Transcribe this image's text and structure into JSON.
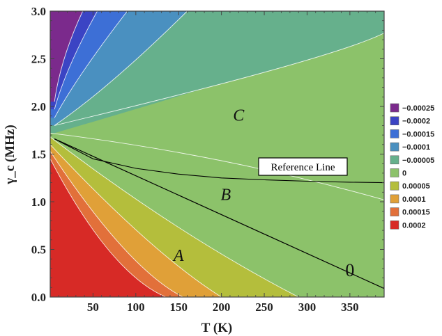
{
  "chart_data": {
    "type": "contour",
    "xlabel": "T (K)",
    "ylabel": "γ_c (MHz)",
    "xlim": [
      0,
      390
    ],
    "ylim": [
      0.0,
      3.0
    ],
    "x_ticks": [
      "50",
      "100",
      "150",
      "200",
      "250",
      "300",
      "350"
    ],
    "y_ticks": [
      "0.0",
      "0.5",
      "1.0",
      "1.5",
      "2.0",
      "2.5",
      "3.0"
    ],
    "legend": {
      "placement": "right",
      "entries": [
        {
          "label": "−0.00025",
          "color": "#7b2a8c"
        },
        {
          "label": "−0.0002",
          "color": "#3b44c4"
        },
        {
          "label": "−0.00015",
          "color": "#3d6fd6"
        },
        {
          "label": "−0.0001",
          "color": "#4a90c0"
        },
        {
          "label": "−0.00005",
          "color": "#66b08c"
        },
        {
          "label": "0",
          "color": "#8cc26a"
        },
        {
          "label": "0.00005",
          "color": "#b4be3c"
        },
        {
          "label": "0.0001",
          "color": "#e0a038"
        },
        {
          "label": "0.00015",
          "color": "#e2703a"
        },
        {
          "label": "0.0002",
          "color": "#d72a26"
        }
      ]
    },
    "region_labels": [
      {
        "text": "A",
        "x": 150,
        "y": 0.38
      },
      {
        "text": "B",
        "x": 205,
        "y": 1.02
      },
      {
        "text": "C",
        "x": 220,
        "y": 1.85
      }
    ],
    "zero_contour_label": {
      "text": "0",
      "x": 350,
      "y": 0.22
    },
    "zero_contour": {
      "x": [
        5,
        390
      ],
      "y": [
        1.66,
        0.09
      ]
    },
    "reference_line": {
      "label": "Reference Line",
      "x": [
        5,
        50,
        100,
        150,
        200,
        250,
        300,
        350,
        390
      ],
      "y": [
        1.66,
        1.45,
        1.35,
        1.29,
        1.25,
        1.23,
        1.215,
        1.205,
        1.2
      ]
    },
    "grid": false
  }
}
